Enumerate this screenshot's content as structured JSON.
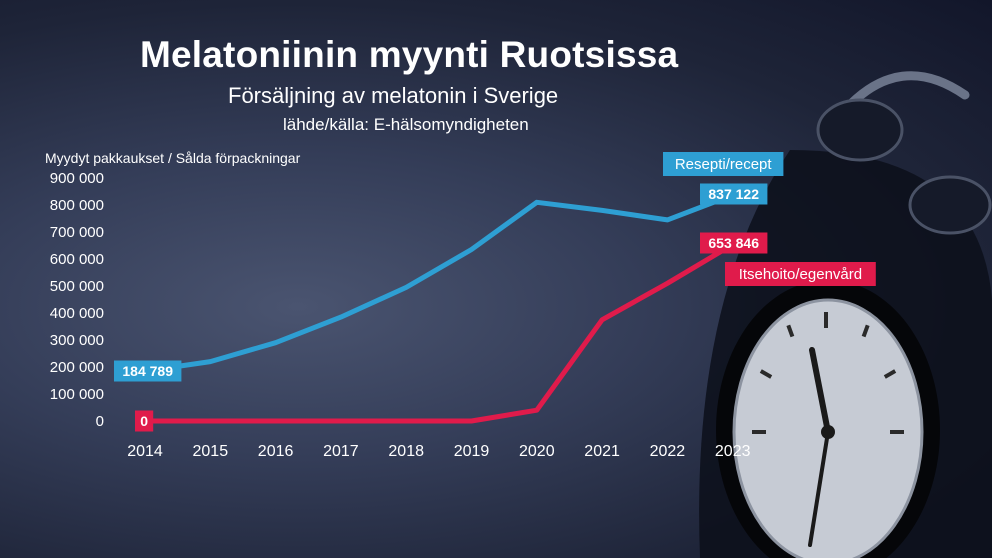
{
  "colors": {
    "recept": "#2e9fd3",
    "egenvard": "#e01b4b",
    "text": "#ffffff"
  },
  "header": {
    "title": "Melatoniinin myynti Ruotsissa",
    "subtitle": "Försäljning av melatonin i Sverige",
    "source": "lähde/källa: E-hälsomyndigheten"
  },
  "chart_data": {
    "type": "line",
    "title": "Melatoniinin myynti Ruotsissa",
    "subtitle": "Försäljning av melatonin i Sverige",
    "ylabel": "Myydyt pakkaukset / Sålda förpackningar",
    "xlabel": "",
    "categories": [
      "2014",
      "2015",
      "2016",
      "2017",
      "2018",
      "2019",
      "2020",
      "2021",
      "2022",
      "2023"
    ],
    "ylim": [
      0,
      900000
    ],
    "yticks": [
      "0",
      "100 000",
      "200 000",
      "300 000",
      "400 000",
      "500 000",
      "600 000",
      "700 000",
      "800 000",
      "900 000"
    ],
    "grid": false,
    "series": [
      {
        "name": "Resepti/recept",
        "color": "#2e9fd3",
        "values": [
          184789,
          220000,
          290000,
          385000,
          495000,
          635000,
          810000,
          780000,
          745000,
          837122
        ],
        "labels": [
          {
            "index": 0,
            "text": "184 789"
          },
          {
            "index": 9,
            "text": "837 122"
          }
        ]
      },
      {
        "name": "Itsehoito/egenvård",
        "color": "#e01b4b",
        "values": [
          0,
          0,
          0,
          0,
          0,
          0,
          40000,
          375000,
          510000,
          653846
        ],
        "labels": [
          {
            "index": 0,
            "text": "0"
          },
          {
            "index": 9,
            "text": "653 846"
          }
        ]
      }
    ]
  }
}
